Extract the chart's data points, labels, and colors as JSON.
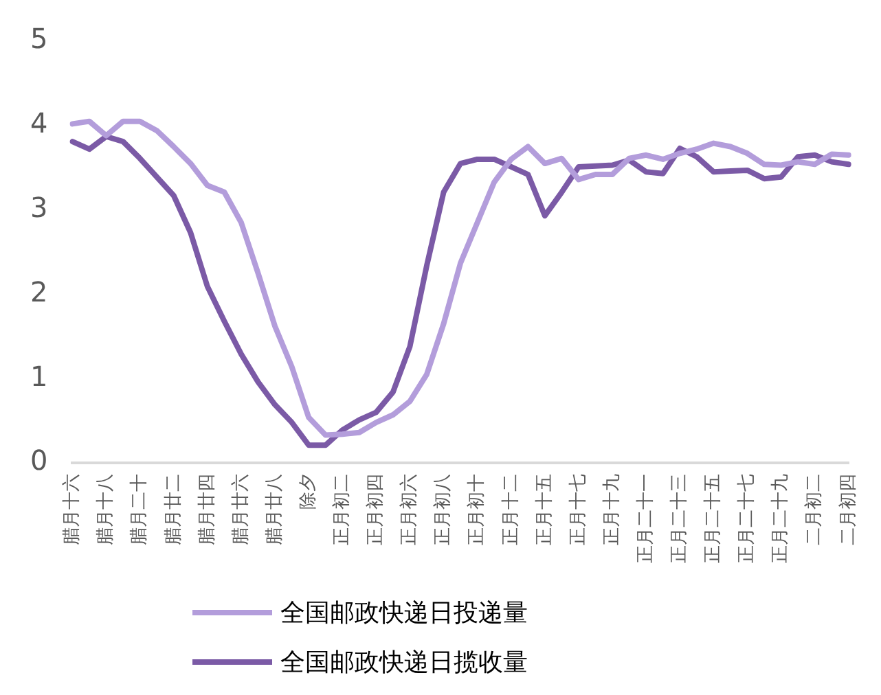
{
  "chart_data": {
    "type": "line",
    "categories": [
      "腊月十六",
      null,
      "腊月十八",
      null,
      "腊月二十",
      null,
      "腊月廿二",
      null,
      "腊月廿四",
      null,
      "腊月廿六",
      null,
      "腊月廿八",
      null,
      "除夕",
      null,
      "正月初二",
      null,
      "正月初四",
      null,
      "正月初六",
      null,
      "正月初八",
      null,
      "正月初十",
      null,
      "正月十二",
      null,
      "正月十五",
      null,
      "正月十七",
      null,
      "正月十九",
      null,
      "正月二十一",
      null,
      "正月二十三",
      null,
      "正月二十五",
      null,
      "正月二十七",
      null,
      "正月二十九",
      null,
      "二月初二",
      null,
      "二月初四"
    ],
    "series": [
      {
        "name": "全国邮政快递日投递量",
        "color": "#b39ddb",
        "values": [
          4.02,
          4.05,
          3.88,
          4.05,
          4.05,
          3.94,
          3.75,
          3.55,
          3.29,
          3.21,
          2.85,
          2.25,
          1.62,
          1.14,
          0.54,
          0.33,
          0.34,
          0.36,
          0.48,
          0.57,
          0.73,
          1.05,
          1.65,
          2.37,
          2.85,
          3.33,
          3.6,
          3.75,
          3.55,
          3.61,
          3.36,
          3.42,
          3.42,
          3.61,
          3.65,
          3.6,
          3.67,
          3.72,
          3.79,
          3.75,
          3.67,
          3.54,
          3.53,
          3.57,
          3.54,
          3.66,
          3.65
        ]
      },
      {
        "name": "全国邮政快递日揽收量",
        "color": "#7b5aa6",
        "values": [
          3.81,
          3.72,
          3.87,
          3.81,
          3.61,
          3.39,
          3.17,
          2.73,
          2.09,
          1.68,
          1.29,
          0.96,
          0.69,
          0.48,
          0.21,
          0.21,
          0.39,
          0.51,
          0.6,
          0.84,
          1.38,
          2.34,
          3.21,
          3.55,
          3.6,
          3.6,
          3.51,
          3.42,
          2.93,
          3.21,
          3.51,
          3.52,
          3.53,
          3.59,
          3.45,
          3.43,
          3.73,
          3.63,
          3.45,
          3.46,
          3.47,
          3.37,
          3.39,
          3.63,
          3.65,
          3.57,
          3.54
        ]
      }
    ],
    "ylim": [
      0,
      5
    ],
    "yticks": [
      0,
      1,
      2,
      3,
      4,
      5
    ],
    "grid": false,
    "legend": "bottom",
    "marker": "none",
    "line_style": "solid"
  }
}
